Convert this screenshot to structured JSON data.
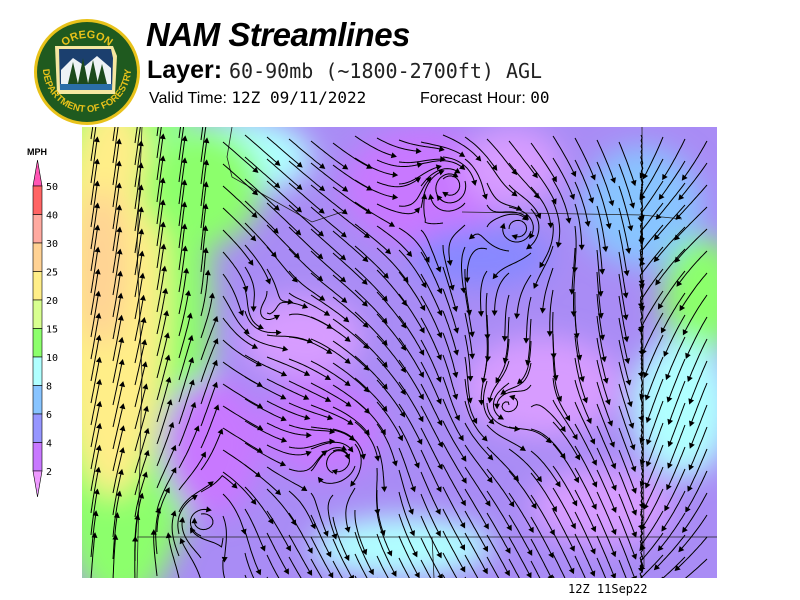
{
  "header": {
    "title": "NAM Streamlines",
    "layer_label": "Layer:",
    "layer_value": "60-90mb (~1800-2700ft) AGL",
    "valid_label": "Valid Time:",
    "valid_value": "12Z 09/11/2022",
    "forecast_label": "Forecast Hour:",
    "forecast_value": "00"
  },
  "logo": {
    "text_top": "OREGON",
    "text_bottom": "DEPARTMENT OF FORESTRY"
  },
  "legend": {
    "unit": "MPH",
    "labels": [
      "50",
      "40",
      "30",
      "25",
      "20",
      "15",
      "10",
      "8",
      "6",
      "4",
      "2"
    ],
    "colors": [
      "#ff6464",
      "#ffaaa0",
      "#ffd294",
      "#ffee88",
      "#d8ff90",
      "#8cff6c",
      "#b0ffff",
      "#88c4ff",
      "#9696ff",
      "#c878ff"
    ],
    "over_color": "#ff55b4",
    "under_color": "#ee99ff"
  },
  "footer": {
    "timestamp": "12Z 11Sep22"
  }
}
